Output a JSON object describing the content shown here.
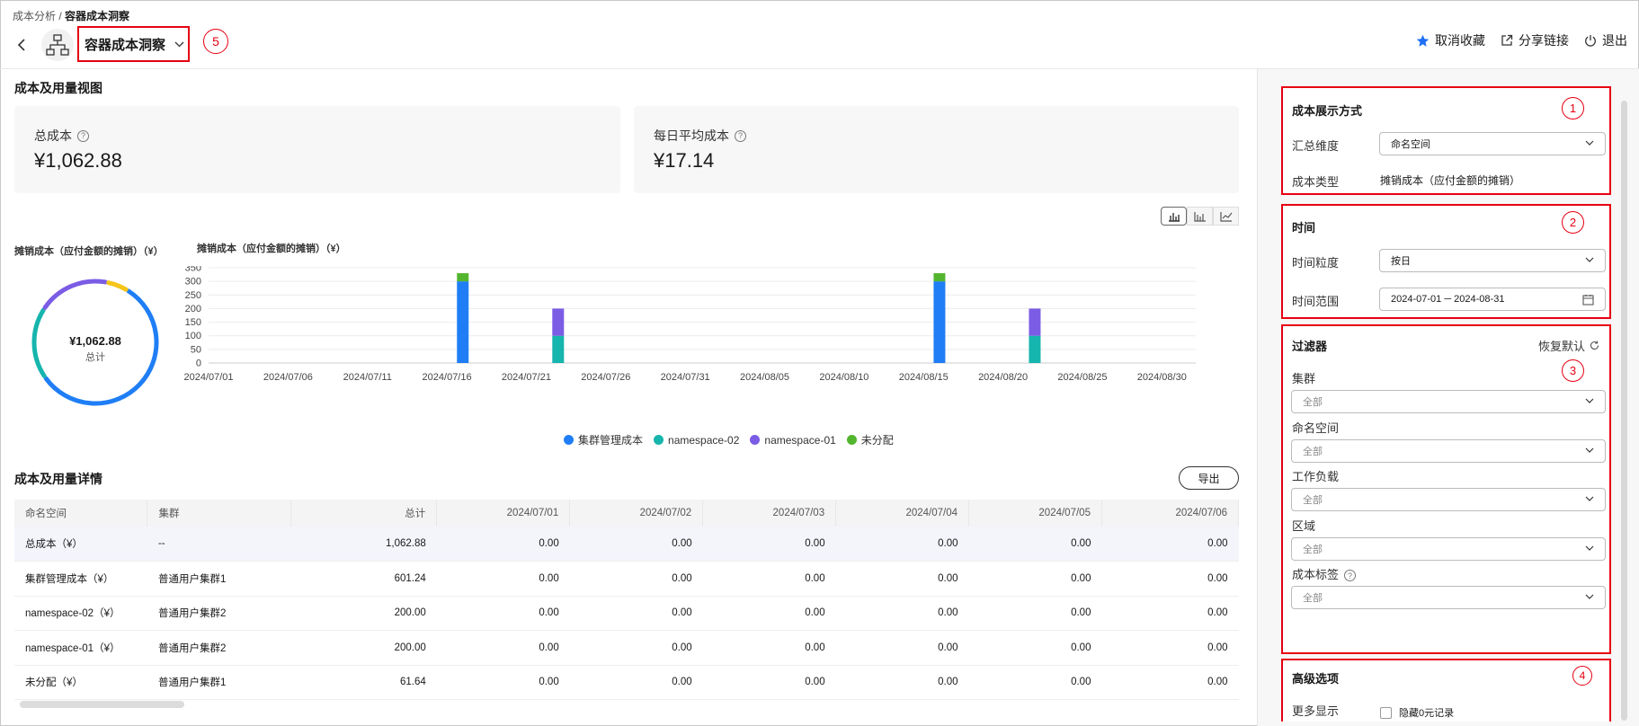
{
  "breadcrumb": {
    "parent": "成本分析",
    "sep": "/",
    "current": "容器成本洞察"
  },
  "header": {
    "title": "容器成本洞察",
    "badge5": "5",
    "favorite": "取消收藏",
    "share": "分享链接",
    "logout": "退出"
  },
  "overview": {
    "section_title": "成本及用量视图",
    "total_label": "总成本",
    "total_value": "¥1,062.88",
    "daily_label": "每日平均成本",
    "daily_value": "¥17.14"
  },
  "donut": {
    "title": "摊销成本（应付金额的摊销）（¥）",
    "center_value": "¥1,062.88",
    "center_label": "总计"
  },
  "chart_data": {
    "type": "bar",
    "title": "摊销成本（应付金额的摊销）（¥）",
    "stacked": true,
    "ylim": [
      0,
      350
    ],
    "yticks": [
      "350",
      "300",
      "250",
      "200",
      "150",
      "100",
      "50",
      "0"
    ],
    "xticks": [
      "2024/07/01",
      "2024/07/06",
      "2024/07/11",
      "2024/07/16",
      "2024/07/21",
      "2024/07/26",
      "2024/07/31",
      "2024/08/05",
      "2024/08/10",
      "2024/08/15",
      "2024/08/20",
      "2024/08/25",
      "2024/08/30"
    ],
    "bars": [
      {
        "date": "2024/07/17",
        "segments": [
          300,
          0,
          0,
          30
        ]
      },
      {
        "date": "2024/07/23",
        "segments": [
          0,
          100,
          100,
          0
        ]
      },
      {
        "date": "2024/08/16",
        "segments": [
          300,
          0,
          0,
          30
        ]
      },
      {
        "date": "2024/08/22",
        "segments": [
          0,
          100,
          100,
          0
        ]
      }
    ],
    "series": [
      {
        "name": "集群管理成本",
        "color": "#1f7ef5"
      },
      {
        "name": "namespace-02",
        "color": "#16b5ad"
      },
      {
        "name": "namespace-01",
        "color": "#7b5ce5"
      },
      {
        "name": "未分配",
        "color": "#53b52e"
      }
    ],
    "grid": true,
    "legend": "bottom"
  },
  "detail": {
    "section_title": "成本及用量详情",
    "export": "导出",
    "columns": [
      "命名空间",
      "集群",
      "总计",
      "2024/07/01",
      "2024/07/02",
      "2024/07/03",
      "2024/07/04",
      "2024/07/05",
      "2024/07/06"
    ],
    "rows": [
      [
        "总成本（¥）",
        "--",
        "1,062.88",
        "0.00",
        "0.00",
        "0.00",
        "0.00",
        "0.00",
        "0.00"
      ],
      [
        "集群管理成本（¥）",
        "普通用户集群1",
        "601.24",
        "0.00",
        "0.00",
        "0.00",
        "0.00",
        "0.00",
        "0.00"
      ],
      [
        "namespace-02（¥）",
        "普通用户集群2",
        "200.00",
        "0.00",
        "0.00",
        "0.00",
        "0.00",
        "0.00",
        "0.00"
      ],
      [
        "namespace-01（¥）",
        "普通用户集群2",
        "200.00",
        "0.00",
        "0.00",
        "0.00",
        "0.00",
        "0.00",
        "0.00"
      ],
      [
        "未分配（¥）",
        "普通用户集群1",
        "61.64",
        "0.00",
        "0.00",
        "0.00",
        "0.00",
        "0.00",
        "0.00"
      ]
    ]
  },
  "panel1": {
    "badge": "1",
    "title": "成本展示方式",
    "dim_label": "汇总维度",
    "dim_value": "命名空间",
    "type_label": "成本类型",
    "type_value": "摊销成本（应付金额的摊销）"
  },
  "panel2": {
    "badge": "2",
    "title": "时间",
    "gran_label": "时间粒度",
    "gran_value": "按日",
    "range_label": "时间范围",
    "range_value": "2024-07-01 ─ 2024-08-31"
  },
  "panel3": {
    "badge": "3",
    "title": "过滤器",
    "reset": "恢复默认",
    "filters": [
      {
        "label": "集群",
        "value": "全部"
      },
      {
        "label": "命名空间",
        "value": "全部"
      },
      {
        "label": "工作负载",
        "value": "全部"
      },
      {
        "label": "区域",
        "value": "全部"
      },
      {
        "label": "成本标签",
        "value": "全部"
      }
    ]
  },
  "panel4": {
    "badge": "4",
    "title": "高级选项",
    "more_label": "更多显示",
    "hide_zero": "隐藏0元记录"
  }
}
